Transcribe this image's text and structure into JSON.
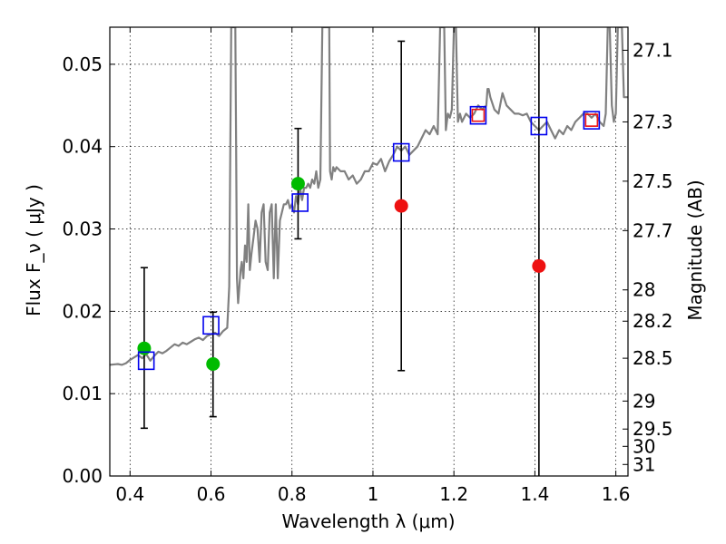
{
  "chart_data": {
    "type": "line",
    "xlabel": "Wavelength  λ (μm)",
    "ylabel": "Flux  F_ν  ( μJy )",
    "y2label": "Magnitude (AB)",
    "xlim": [
      0.35,
      1.63
    ],
    "ylim": [
      0.0,
      0.0545
    ],
    "grid": true,
    "x_ticks": [
      0.4,
      0.6,
      0.8,
      1.0,
      1.2,
      1.4,
      1.6
    ],
    "x_tick_labels": [
      "0.4",
      "0.6",
      "0.8",
      "1",
      "1.2",
      "1.4",
      "1.6"
    ],
    "y_ticks": [
      0.0,
      0.01,
      0.02,
      0.03,
      0.04,
      0.05
    ],
    "y_tick_labels": [
      "0.00",
      "0.01",
      "0.02",
      "0.03",
      "0.04",
      "0.05"
    ],
    "mag_ticks": [
      {
        "label": "27.1",
        "flux": 0.0517
      },
      {
        "label": "27.3",
        "flux": 0.043
      },
      {
        "label": "27.5",
        "flux": 0.0358
      },
      {
        "label": "27.7",
        "flux": 0.0298
      },
      {
        "label": "28",
        "flux": 0.0226
      },
      {
        "label": "28.2",
        "flux": 0.0188
      },
      {
        "label": "28.5",
        "flux": 0.0143
      },
      {
        "label": "29",
        "flux": 0.0091
      },
      {
        "label": "29.5",
        "flux": 0.0057
      },
      {
        "label": "30",
        "flux": 0.0036
      },
      {
        "label": "31",
        "flux": 0.0014
      }
    ],
    "series": [
      {
        "role": "template_sed",
        "color": "#808080",
        "x": [
          0.35,
          0.37,
          0.38,
          0.39,
          0.4,
          0.41,
          0.42,
          0.43,
          0.44,
          0.45,
          0.46,
          0.47,
          0.48,
          0.49,
          0.5,
          0.51,
          0.52,
          0.53,
          0.54,
          0.55,
          0.56,
          0.57,
          0.58,
          0.59,
          0.6,
          0.61,
          0.62,
          0.63,
          0.64,
          0.645,
          0.65,
          0.652,
          0.654,
          0.656,
          0.658,
          0.66,
          0.662,
          0.664,
          0.667,
          0.67,
          0.673,
          0.676,
          0.68,
          0.684,
          0.688,
          0.692,
          0.696,
          0.7,
          0.705,
          0.71,
          0.715,
          0.72,
          0.725,
          0.73,
          0.735,
          0.74,
          0.745,
          0.75,
          0.755,
          0.76,
          0.765,
          0.77,
          0.775,
          0.78,
          0.785,
          0.79,
          0.795,
          0.8,
          0.805,
          0.81,
          0.815,
          0.82,
          0.825,
          0.83,
          0.835,
          0.84,
          0.845,
          0.85,
          0.855,
          0.86,
          0.865,
          0.87,
          0.875,
          0.88,
          0.884,
          0.886,
          0.888,
          0.89,
          0.892,
          0.894,
          0.898,
          0.902,
          0.906,
          0.91,
          0.92,
          0.93,
          0.94,
          0.95,
          0.96,
          0.97,
          0.98,
          0.99,
          1.0,
          1.01,
          1.02,
          1.03,
          1.04,
          1.05,
          1.06,
          1.07,
          1.08,
          1.09,
          1.1,
          1.11,
          1.12,
          1.13,
          1.14,
          1.15,
          1.16,
          1.166,
          1.168,
          1.17,
          1.172,
          1.174,
          1.176,
          1.18,
          1.185,
          1.19,
          1.195,
          1.2,
          1.205,
          1.21,
          1.215,
          1.22,
          1.23,
          1.24,
          1.25,
          1.26,
          1.27,
          1.28,
          1.283,
          1.286,
          1.29,
          1.3,
          1.31,
          1.32,
          1.33,
          1.34,
          1.35,
          1.36,
          1.37,
          1.38,
          1.39,
          1.4,
          1.41,
          1.42,
          1.43,
          1.44,
          1.45,
          1.46,
          1.47,
          1.48,
          1.49,
          1.5,
          1.51,
          1.52,
          1.53,
          1.54,
          1.55,
          1.56,
          1.57,
          1.575,
          1.58,
          1.585,
          1.59,
          1.595,
          1.6,
          1.605,
          1.61,
          1.615,
          1.62,
          1.63
        ],
        "y": [
          0.0135,
          0.0136,
          0.0135,
          0.0137,
          0.0141,
          0.0144,
          0.0147,
          0.0143,
          0.0148,
          0.014,
          0.0146,
          0.0151,
          0.0149,
          0.0152,
          0.0156,
          0.016,
          0.0158,
          0.0162,
          0.016,
          0.0163,
          0.0166,
          0.0168,
          0.0165,
          0.017,
          0.0172,
          0.0174,
          0.017,
          0.0176,
          0.018,
          0.023,
          0.0545,
          0.0545,
          0.0545,
          0.0545,
          0.0545,
          0.0545,
          0.04,
          0.024,
          0.021,
          0.023,
          0.025,
          0.026,
          0.024,
          0.028,
          0.026,
          0.033,
          0.025,
          0.027,
          0.029,
          0.031,
          0.03,
          0.026,
          0.032,
          0.033,
          0.026,
          0.025,
          0.032,
          0.033,
          0.024,
          0.033,
          0.024,
          0.031,
          0.032,
          0.033,
          0.033,
          0.0335,
          0.0325,
          0.033,
          0.032,
          0.034,
          0.033,
          0.035,
          0.0335,
          0.035,
          0.035,
          0.0355,
          0.035,
          0.036,
          0.0355,
          0.037,
          0.035,
          0.036,
          0.0545,
          0.0545,
          0.0545,
          0.0545,
          0.0545,
          0.0545,
          0.0545,
          0.037,
          0.036,
          0.0375,
          0.037,
          0.0375,
          0.037,
          0.037,
          0.036,
          0.0365,
          0.0355,
          0.036,
          0.037,
          0.037,
          0.038,
          0.0378,
          0.0385,
          0.037,
          0.0382,
          0.039,
          0.04,
          0.0395,
          0.04,
          0.039,
          0.0395,
          0.04,
          0.041,
          0.042,
          0.0415,
          0.0425,
          0.0415,
          0.0545,
          0.0545,
          0.0545,
          0.0545,
          0.0545,
          0.0545,
          0.042,
          0.044,
          0.0435,
          0.0445,
          0.0545,
          0.0545,
          0.043,
          0.044,
          0.043,
          0.044,
          0.0435,
          0.044,
          0.045,
          0.0445,
          0.045,
          0.047,
          0.047,
          0.046,
          0.0445,
          0.044,
          0.0465,
          0.045,
          0.0445,
          0.044,
          0.044,
          0.0438,
          0.044,
          0.043,
          0.0425,
          0.042,
          0.0425,
          0.043,
          0.042,
          0.041,
          0.042,
          0.0415,
          0.0425,
          0.042,
          0.043,
          0.0435,
          0.044,
          0.044,
          0.0435,
          0.044,
          0.043,
          0.0425,
          0.044,
          0.0545,
          0.0545,
          0.045,
          0.043,
          0.044,
          0.0545,
          0.0545,
          0.0545,
          0.046,
          0.046
        ]
      },
      {
        "role": "green_points",
        "color": "#00bb00",
        "x": [
          0.435,
          0.605,
          0.815
        ],
        "y": [
          0.0155,
          0.0136,
          0.0355
        ]
      },
      {
        "role": "red_points",
        "color": "#ee1111",
        "x": [
          1.07,
          1.41
        ],
        "y": [
          0.0328,
          0.0255
        ]
      },
      {
        "role": "model_boxes",
        "color": "#0000ee",
        "x": [
          0.44,
          0.6,
          0.82,
          1.07,
          1.26,
          1.41,
          1.54
        ],
        "y": [
          0.014,
          0.0183,
          0.0332,
          0.0393,
          0.0438,
          0.0425,
          0.0432
        ]
      },
      {
        "role": "red_boxes",
        "color": "#ee1111",
        "x": [
          1.26,
          1.54
        ],
        "y": [
          0.0438,
          0.0432
        ]
      }
    ],
    "error_bars": [
      {
        "x": 0.435,
        "low": 0.0058,
        "high": 0.0253
      },
      {
        "x": 0.605,
        "low": 0.0072,
        "high": 0.0199
      },
      {
        "x": 0.815,
        "low": 0.0288,
        "high": 0.0422
      },
      {
        "x": 1.07,
        "low": 0.0128,
        "high": 0.0528
      },
      {
        "x": 1.41,
        "low": 0.0,
        "high": 0.0545
      }
    ],
    "colors": {
      "template": "#808080",
      "green": "#00bb00",
      "red": "#ee1111",
      "blue": "#0000ee",
      "errorbar": "#000000",
      "grid": "#000000"
    }
  }
}
